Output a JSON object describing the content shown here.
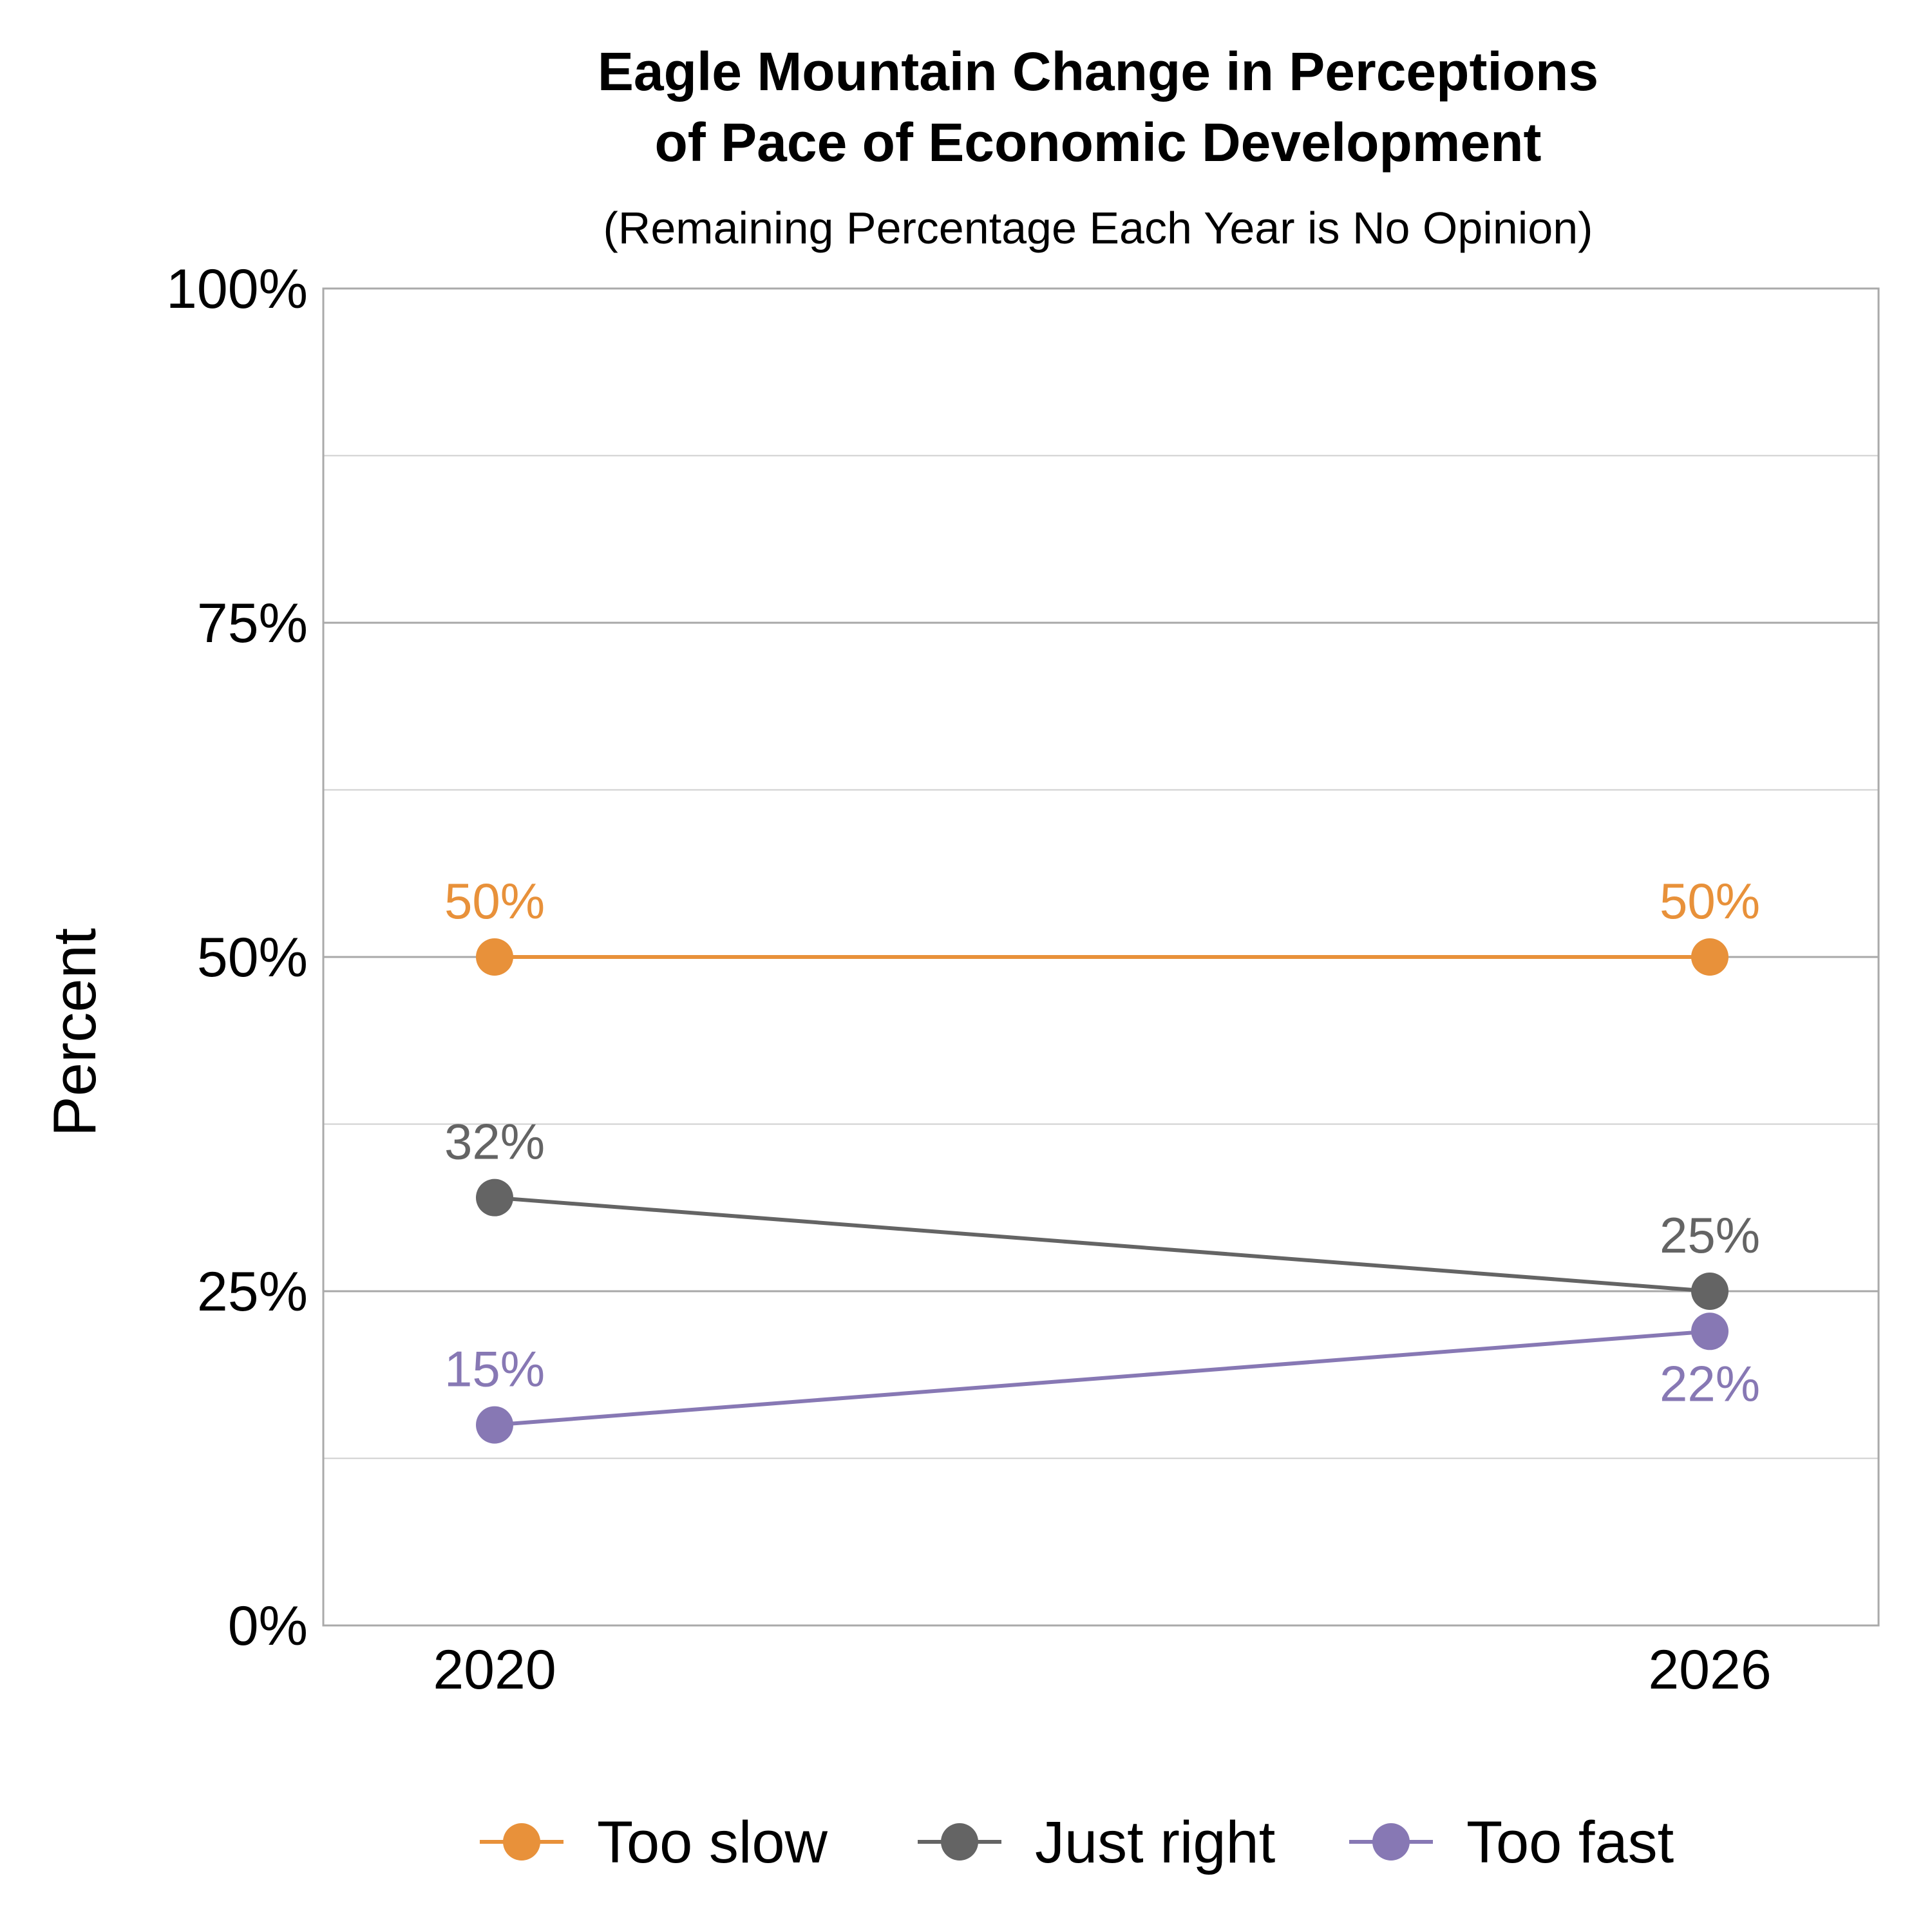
{
  "chart_data": {
    "type": "line",
    "title_lines": [
      "Eagle Mountain Change in Perceptions",
      "of Pace of Economic Development"
    ],
    "subtitle": "(Remaining Percentage Each Year is No Opinion)",
    "xlabel": "",
    "ylabel": "Percent",
    "categories": [
      "2020",
      "2026"
    ],
    "ylim": [
      0,
      100
    ],
    "y_ticks": [
      0,
      25,
      50,
      75,
      100
    ],
    "y_tick_labels": [
      "0%",
      "25%",
      "50%",
      "75%",
      "100%"
    ],
    "grid": true,
    "legend_position": "bottom",
    "series": [
      {
        "name": "Too slow",
        "color": "#E8913A",
        "values": [
          50,
          50
        ],
        "labels": [
          "50%",
          "50%"
        ]
      },
      {
        "name": "Just right",
        "color": "#646464",
        "values": [
          32,
          25
        ],
        "labels": [
          "32%",
          "25%"
        ]
      },
      {
        "name": "Too fast",
        "color": "#8778B4",
        "values": [
          15,
          22
        ],
        "labels": [
          "15%",
          "22%"
        ]
      }
    ]
  }
}
